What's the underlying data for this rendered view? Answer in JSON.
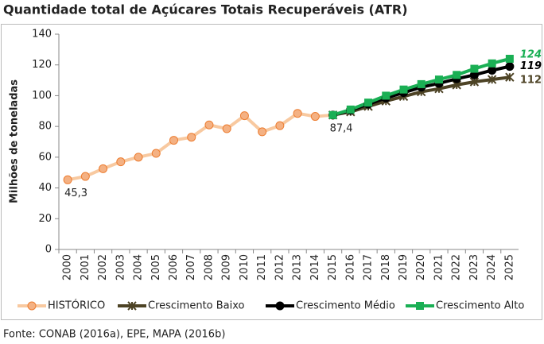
{
  "chart_data": {
    "type": "line",
    "title": "Quantidade total de Açúcares Totais Recuperáveis (ATR)",
    "y_label": "Milhões de toneladas",
    "source": "Fonte: CONAB (2016a), EPE, MAPA (2016b)",
    "categories": [
      "2000",
      "2001",
      "2002",
      "2003",
      "2004",
      "2005",
      "2006",
      "2007",
      "2008",
      "2009",
      "2010",
      "2011",
      "2012",
      "2013",
      "2014",
      "2015",
      "2016",
      "2017",
      "2018",
      "2019",
      "2020",
      "2021",
      "2022",
      "2023",
      "2024",
      "2025"
    ],
    "ylim": [
      0,
      140
    ],
    "yticks": [
      0,
      20,
      40,
      60,
      80,
      100,
      120,
      140
    ],
    "series": [
      {
        "name": "HISTÓRICO",
        "color": "#f8c9a0",
        "marker": "circle",
        "marker_color": "#f4b183",
        "values": [
          45.3,
          47.5,
          52.5,
          57,
          60,
          62.5,
          71,
          73,
          81,
          78.5,
          87,
          76.5,
          80.5,
          88.5,
          86.5,
          87.4,
          null,
          null,
          null,
          null,
          null,
          null,
          null,
          null,
          null,
          null
        ],
        "value_labels": [
          "45,3",
          null,
          null,
          null,
          null,
          null,
          null,
          null,
          null,
          null,
          null,
          null,
          null,
          null,
          null,
          "87,4",
          null,
          null,
          null,
          null,
          null,
          null,
          null,
          null,
          null,
          null
        ]
      },
      {
        "name": "Crescimento Baixo",
        "color": "#4d4325",
        "marker": "x",
        "marker_color": "#4d4325",
        "values": [
          null,
          null,
          null,
          null,
          null,
          null,
          null,
          null,
          null,
          null,
          null,
          null,
          null,
          null,
          null,
          87.4,
          89.5,
          93,
          96.5,
          99.5,
          102.5,
          104.5,
          107,
          109,
          110.5,
          112
        ],
        "value_labels": [
          null,
          null,
          null,
          null,
          null,
          null,
          null,
          null,
          null,
          null,
          null,
          null,
          null,
          null,
          null,
          null,
          null,
          null,
          null,
          null,
          null,
          null,
          null,
          null,
          null,
          "112"
        ]
      },
      {
        "name": "Crescimento Médio",
        "color": "#000000",
        "marker": "circle",
        "marker_color": "#000000",
        "values": [
          null,
          null,
          null,
          null,
          null,
          null,
          null,
          null,
          null,
          null,
          null,
          null,
          null,
          null,
          null,
          87.4,
          90.5,
          94.5,
          98.5,
          102,
          105.5,
          108,
          111,
          113.5,
          116.5,
          119
        ],
        "value_labels": [
          null,
          null,
          null,
          null,
          null,
          null,
          null,
          null,
          null,
          null,
          null,
          null,
          null,
          null,
          null,
          null,
          null,
          null,
          null,
          null,
          null,
          null,
          null,
          null,
          null,
          "119"
        ]
      },
      {
        "name": "Crescimento Alto",
        "color": "#1aaf54",
        "marker": "square",
        "marker_color": "#1aaf54",
        "values": [
          null,
          null,
          null,
          null,
          null,
          null,
          null,
          null,
          null,
          null,
          null,
          null,
          null,
          null,
          null,
          87.4,
          91,
          95.5,
          100,
          104,
          107.5,
          110.5,
          113.5,
          117.5,
          121,
          124
        ],
        "value_labels": [
          null,
          null,
          null,
          null,
          null,
          null,
          null,
          null,
          null,
          null,
          null,
          null,
          null,
          null,
          null,
          null,
          null,
          null,
          null,
          null,
          null,
          null,
          null,
          null,
          null,
          "124"
        ]
      }
    ]
  }
}
